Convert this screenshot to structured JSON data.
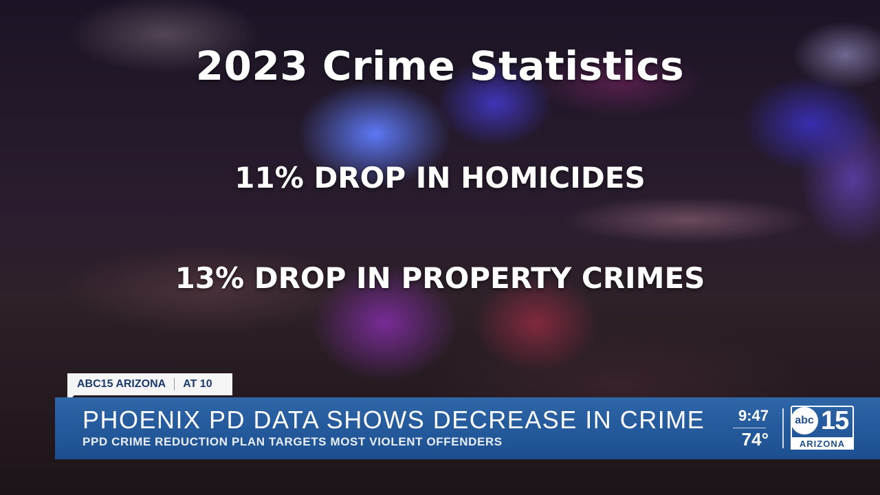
{
  "graphic": {
    "title": "2023 Crime Statistics",
    "line1": "11% DROP IN HOMICIDES",
    "line2": "13% DROP IN PROPERTY CRIMES"
  },
  "tag": {
    "station": "ABC15 ARIZONA",
    "show": "AT 10"
  },
  "banner": {
    "headline": "PHOENIX PD DATA SHOWS DECREASE IN CRIME",
    "subhead": "PPD CRIME REDUCTION PLAN TARGETS MOST VIOLENT OFFENDERS"
  },
  "status": {
    "time": "9:47",
    "temperature": "74°"
  },
  "logo": {
    "abc": "abc",
    "channel": "15",
    "state": "ARIZONA"
  },
  "colors": {
    "banner_blue": "#245a9c",
    "tag_text": "#1b3a6b",
    "text_white": "#ffffff"
  }
}
